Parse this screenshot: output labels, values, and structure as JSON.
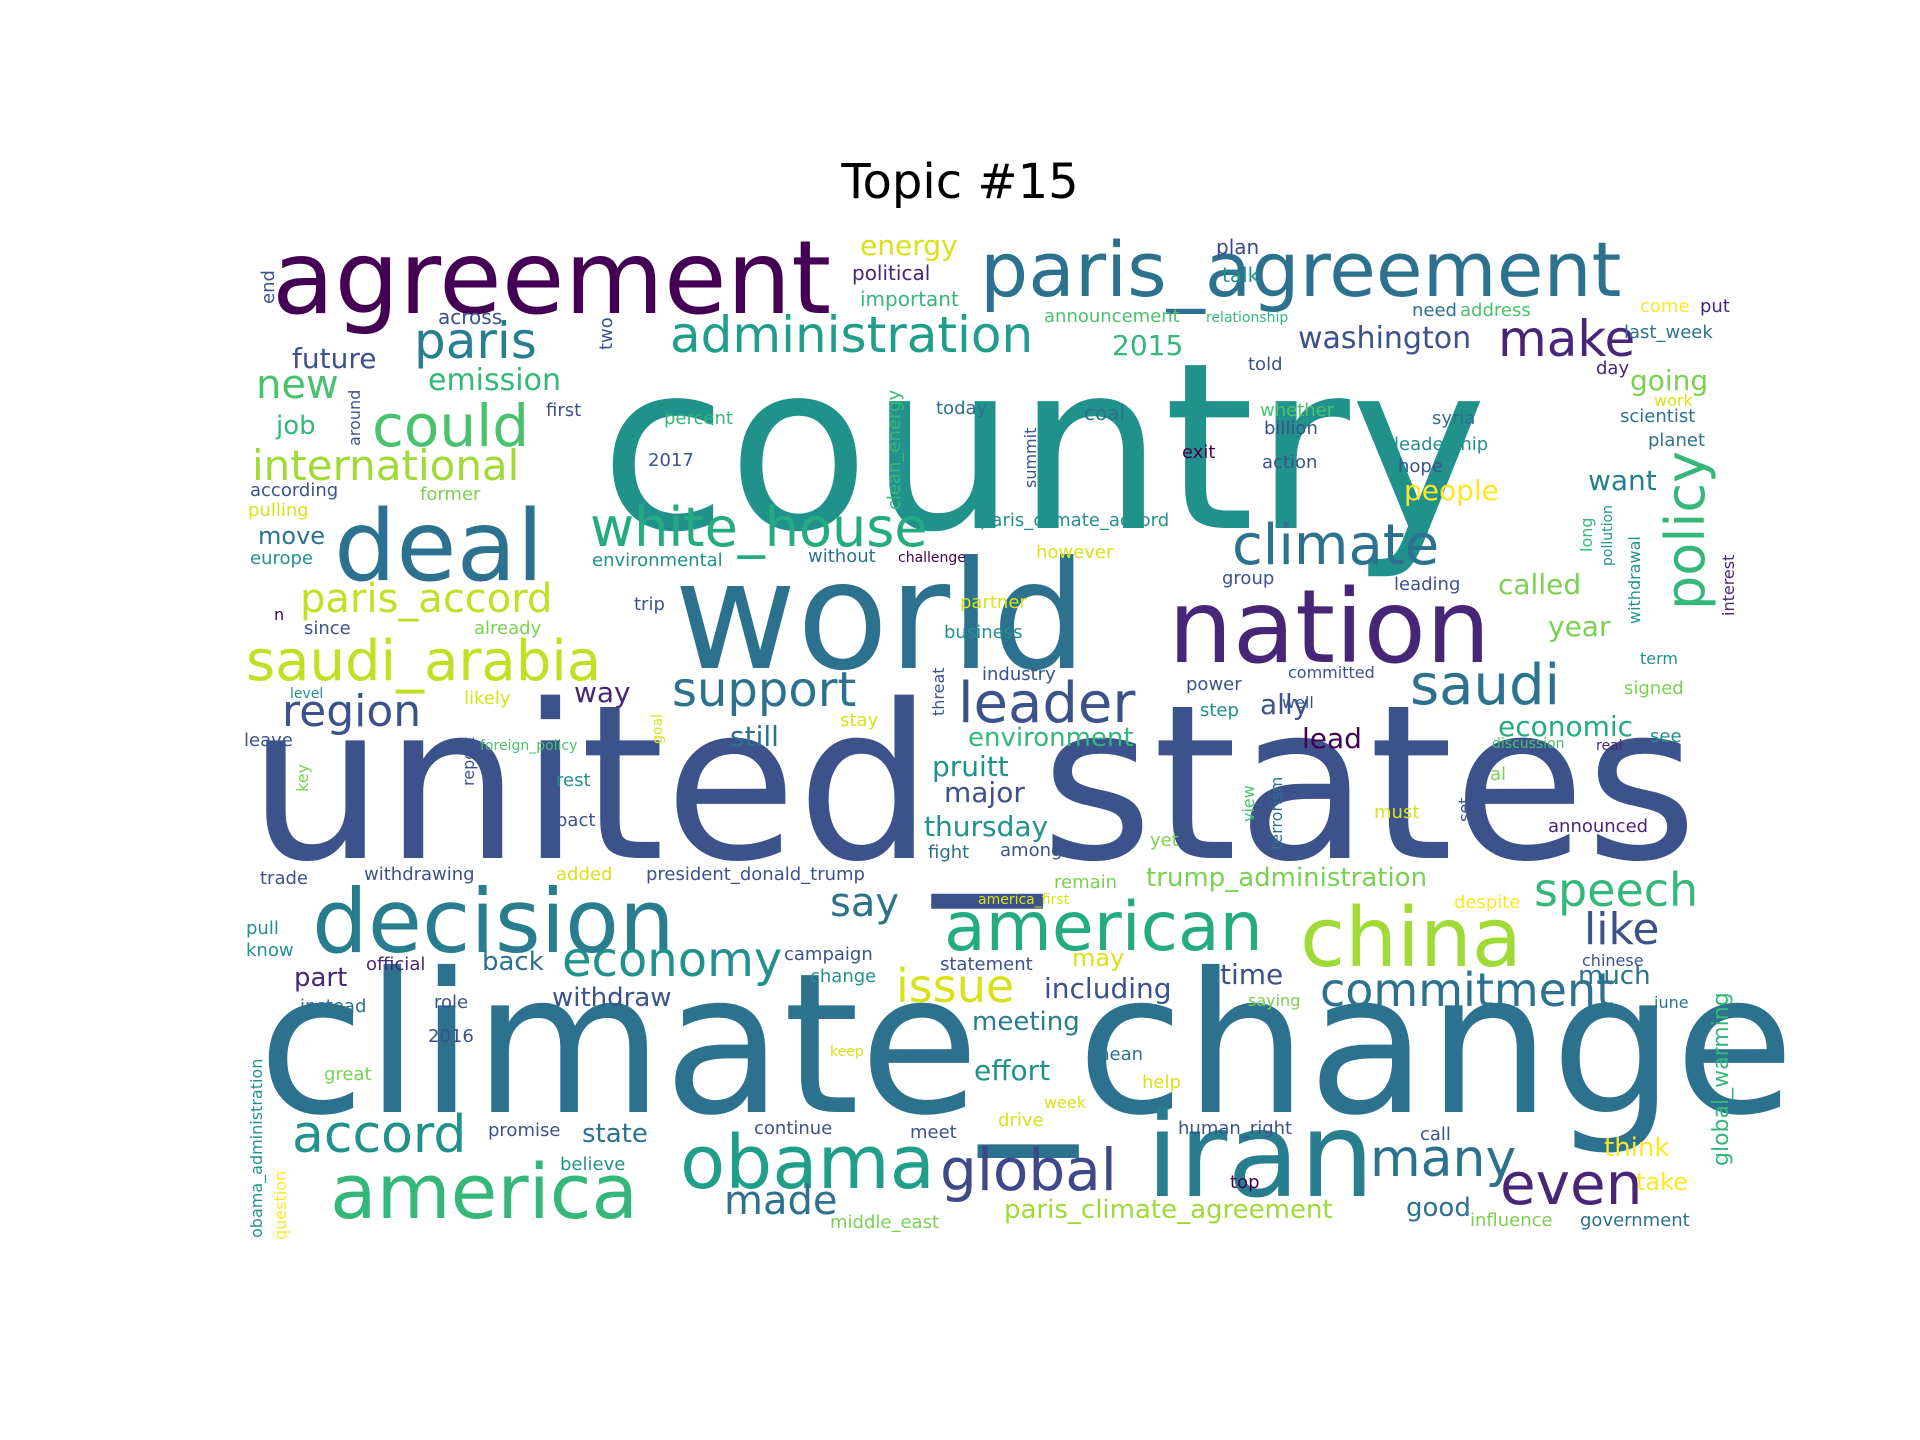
{
  "title": "Topic #15",
  "chart_data": {
    "type": "wordcloud",
    "title": "Topic #15",
    "colormap": "viridis",
    "background": "#ffffff",
    "words": [
      {
        "text": "country",
        "weight": 1.0,
        "color": "#21918c"
      },
      {
        "text": "united_states",
        "weight": 0.98,
        "color": "#3b528b"
      },
      {
        "text": "climate_change",
        "weight": 0.92,
        "color": "#2c728e"
      },
      {
        "text": "world",
        "weight": 0.72,
        "color": "#2c728e"
      },
      {
        "text": "agreement",
        "weight": 0.56,
        "color": "#440154"
      },
      {
        "text": "paris_agreement",
        "weight": 0.44,
        "color": "#2c728e"
      },
      {
        "text": "nation",
        "weight": 0.52,
        "color": "#482677"
      },
      {
        "text": "iran",
        "weight": 0.5,
        "color": "#287d8e"
      },
      {
        "text": "deal",
        "weight": 0.46,
        "color": "#2c728e"
      },
      {
        "text": "decision",
        "weight": 0.44,
        "color": "#287d8e"
      },
      {
        "text": "america",
        "weight": 0.4,
        "color": "#35b779"
      },
      {
        "text": "china",
        "weight": 0.4,
        "color": "#a0da39"
      },
      {
        "text": "obama",
        "weight": 0.38,
        "color": "#1f9e89"
      },
      {
        "text": "american",
        "weight": 0.36,
        "color": "#25ab82"
      },
      {
        "text": "saudi_arabia",
        "weight": 0.32,
        "color": "#c2df23"
      },
      {
        "text": "could",
        "weight": 0.32,
        "color": "#4ac16d"
      },
      {
        "text": "administration",
        "weight": 0.28,
        "color": "#1f9e89"
      },
      {
        "text": "white_house",
        "weight": 0.28,
        "color": "#25ab82"
      },
      {
        "text": "climate",
        "weight": 0.3,
        "color": "#2c728e"
      },
      {
        "text": "leader",
        "weight": 0.3,
        "color": "#3b528b"
      },
      {
        "text": "saudi",
        "weight": 0.28,
        "color": "#2c728e"
      },
      {
        "text": "policy",
        "weight": 0.28,
        "color": "#35b779"
      },
      {
        "text": "global",
        "weight": 0.28,
        "color": "#3e4989"
      },
      {
        "text": "even",
        "weight": 0.28,
        "color": "#482677"
      },
      {
        "text": "many",
        "weight": 0.27,
        "color": "#2c728e"
      },
      {
        "text": "accord",
        "weight": 0.27,
        "color": "#21918c"
      },
      {
        "text": "economy",
        "weight": 0.26,
        "color": "#21918c"
      },
      {
        "text": "paris",
        "weight": 0.26,
        "color": "#287d8e"
      },
      {
        "text": "make",
        "weight": 0.26,
        "color": "#482677"
      },
      {
        "text": "support",
        "weight": 0.26,
        "color": "#2c728e"
      },
      {
        "text": "region",
        "weight": 0.24,
        "color": "#3b528b"
      },
      {
        "text": "international",
        "weight": 0.24,
        "color": "#a0da39"
      },
      {
        "text": "paris_accord",
        "weight": 0.22,
        "color": "#c2df23"
      },
      {
        "text": "speech",
        "weight": 0.24,
        "color": "#35b779"
      },
      {
        "text": "commitment",
        "weight": 0.24,
        "color": "#2c728e"
      },
      {
        "text": "issue",
        "weight": 0.24,
        "color": "#d8e219"
      },
      {
        "text": "like",
        "weight": 0.24,
        "color": "#3b528b"
      },
      {
        "text": "made",
        "weight": 0.22,
        "color": "#2c728e"
      },
      {
        "text": "say",
        "weight": 0.2,
        "color": "#2c728e"
      },
      {
        "text": "new",
        "weight": 0.2,
        "color": "#4ac16d"
      },
      {
        "text": "washington",
        "weight": 0.16,
        "color": "#3b528b"
      },
      {
        "text": "emission",
        "weight": 0.16,
        "color": "#35b779"
      },
      {
        "text": "future",
        "weight": 0.15,
        "color": "#3b528b"
      },
      {
        "text": "energy",
        "weight": 0.15,
        "color": "#d8e219"
      },
      {
        "text": "2015",
        "weight": 0.15,
        "color": "#35b779"
      },
      {
        "text": "going",
        "weight": 0.16,
        "color": "#7ad151"
      },
      {
        "text": "want",
        "weight": 0.16,
        "color": "#287d8e"
      },
      {
        "text": "people",
        "weight": 0.16,
        "color": "#fde725"
      },
      {
        "text": "called",
        "weight": 0.16,
        "color": "#7ad151"
      },
      {
        "text": "year",
        "weight": 0.16,
        "color": "#7ad151"
      },
      {
        "text": "economic",
        "weight": 0.16,
        "color": "#25ab82"
      },
      {
        "text": "lead",
        "weight": 0.16,
        "color": "#440154"
      },
      {
        "text": "ally",
        "weight": 0.14,
        "color": "#3b528b"
      },
      {
        "text": "still",
        "weight": 0.16,
        "color": "#2c728e"
      },
      {
        "text": "way",
        "weight": 0.14,
        "color": "#482677"
      },
      {
        "text": "environment",
        "weight": 0.15,
        "color": "#35b779"
      },
      {
        "text": "pruitt",
        "weight": 0.16,
        "color": "#21918c"
      },
      {
        "text": "major",
        "weight": 0.15,
        "color": "#3b528b"
      },
      {
        "text": "thursday",
        "weight": 0.16,
        "color": "#21918c"
      },
      {
        "text": "trump_administration",
        "weight": 0.15,
        "color": "#7ad151"
      },
      {
        "text": "meeting",
        "weight": 0.15,
        "color": "#287d8e"
      },
      {
        "text": "effort",
        "weight": 0.15,
        "color": "#21918c"
      },
      {
        "text": "including",
        "weight": 0.15,
        "color": "#3b528b"
      },
      {
        "text": "time",
        "weight": 0.15,
        "color": "#3b528b"
      },
      {
        "text": "much",
        "weight": 0.14,
        "color": "#2c728e"
      },
      {
        "text": "withdraw",
        "weight": 0.15,
        "color": "#3b528b"
      },
      {
        "text": "back",
        "weight": 0.14,
        "color": "#2c728e"
      },
      {
        "text": "part",
        "weight": 0.14,
        "color": "#482677"
      },
      {
        "text": "state",
        "weight": 0.14,
        "color": "#2c728e"
      },
      {
        "text": "move",
        "weight": 0.14,
        "color": "#2c728e"
      },
      {
        "text": "job",
        "weight": 0.14,
        "color": "#35b779"
      },
      {
        "text": "may",
        "weight": 0.14,
        "color": "#d8e219"
      },
      {
        "text": "think",
        "weight": 0.14,
        "color": "#fde725"
      },
      {
        "text": "take",
        "weight": 0.13,
        "color": "#fde725"
      },
      {
        "text": "good",
        "weight": 0.14,
        "color": "#2c728e"
      },
      {
        "text": "paris_climate_agreement",
        "weight": 0.15,
        "color": "#a0da39"
      },
      {
        "text": "global_warming",
        "weight": 0.12,
        "color": "#35b779"
      },
      {
        "text": "plan",
        "weight": 0.1,
        "color": "#3e4989"
      },
      {
        "text": "political",
        "weight": 0.1,
        "color": "#482677"
      },
      {
        "text": "talk",
        "weight": 0.1,
        "color": "#21918c"
      },
      {
        "text": "important",
        "weight": 0.1,
        "color": "#35b779"
      },
      {
        "text": "across",
        "weight": 0.1,
        "color": "#3b528b"
      },
      {
        "text": "two",
        "weight": 0.1,
        "color": "#3b528b"
      },
      {
        "text": "end",
        "weight": 0.09,
        "color": "#3b528b"
      },
      {
        "text": "announcement",
        "weight": 0.1,
        "color": "#4ac16d"
      },
      {
        "text": "relationship",
        "weight": 0.08,
        "color": "#35b779"
      },
      {
        "text": "need",
        "weight": 0.1,
        "color": "#2c728e"
      },
      {
        "text": "address",
        "weight": 0.1,
        "color": "#4ac16d"
      },
      {
        "text": "come",
        "weight": 0.1,
        "color": "#fde725"
      },
      {
        "text": "put",
        "weight": 0.1,
        "color": "#482677"
      },
      {
        "text": "last_week",
        "weight": 0.1,
        "color": "#2c728e"
      },
      {
        "text": "told",
        "weight": 0.1,
        "color": "#3b528b"
      },
      {
        "text": "day",
        "weight": 0.1,
        "color": "#482677"
      },
      {
        "text": "work",
        "weight": 0.09,
        "color": "#d8e219"
      },
      {
        "text": "scientist",
        "weight": 0.1,
        "color": "#2c728e"
      },
      {
        "text": "first",
        "weight": 0.1,
        "color": "#3b528b"
      },
      {
        "text": "around",
        "weight": 0.09,
        "color": "#3b528b"
      },
      {
        "text": "percent",
        "weight": 0.1,
        "color": "#35b779"
      },
      {
        "text": "clean_energy",
        "weight": 0.09,
        "color": "#35b779"
      },
      {
        "text": "today",
        "weight": 0.1,
        "color": "#2c728e"
      },
      {
        "text": "coal",
        "weight": 0.1,
        "color": "#2c728e"
      },
      {
        "text": "whether",
        "weight": 0.1,
        "color": "#4ac16d"
      },
      {
        "text": "billion",
        "weight": 0.1,
        "color": "#3b528b"
      },
      {
        "text": "syria",
        "weight": 0.1,
        "color": "#2c728e"
      },
      {
        "text": "leadership",
        "weight": 0.1,
        "color": "#21918c"
      },
      {
        "text": "planet",
        "weight": 0.1,
        "color": "#2c728e"
      },
      {
        "text": "2017",
        "weight": 0.1,
        "color": "#3b528b"
      },
      {
        "text": "summit",
        "weight": 0.09,
        "color": "#3b528b"
      },
      {
        "text": "exit",
        "weight": 0.1,
        "color": "#440154"
      },
      {
        "text": "action",
        "weight": 0.1,
        "color": "#3b528b"
      },
      {
        "text": "hope",
        "weight": 0.1,
        "color": "#3b528b"
      },
      {
        "text": "according",
        "weight": 0.1,
        "color": "#3b528b"
      },
      {
        "text": "former",
        "weight": 0.09,
        "color": "#7ad151"
      },
      {
        "text": "pulling",
        "weight": 0.1,
        "color": "#d8e219"
      },
      {
        "text": "europe",
        "weight": 0.09,
        "color": "#21918c"
      },
      {
        "text": "paris_climate_accord",
        "weight": 0.1,
        "color": "#21918c"
      },
      {
        "text": "long",
        "weight": 0.09,
        "color": "#35b779"
      },
      {
        "text": "pollution",
        "weight": 0.08,
        "color": "#21918c"
      },
      {
        "text": "withdrawal",
        "weight": 0.09,
        "color": "#21918c"
      },
      {
        "text": "interest",
        "weight": 0.09,
        "color": "#482677"
      },
      {
        "text": "environmental",
        "weight": 0.1,
        "color": "#21918c"
      },
      {
        "text": "without",
        "weight": 0.1,
        "color": "#2c728e"
      },
      {
        "text": "challenge",
        "weight": 0.08,
        "color": "#440154"
      },
      {
        "text": "however",
        "weight": 0.1,
        "color": "#d8e219"
      },
      {
        "text": "group",
        "weight": 0.1,
        "color": "#3b528b"
      },
      {
        "text": "leading",
        "weight": 0.1,
        "color": "#3b528b"
      },
      {
        "text": "n",
        "weight": 0.09,
        "color": "#440154"
      },
      {
        "text": "trip",
        "weight": 0.1,
        "color": "#3b528b"
      },
      {
        "text": "partner",
        "weight": 0.1,
        "color": "#d8e219"
      },
      {
        "text": "since",
        "weight": 0.1,
        "color": "#3b528b"
      },
      {
        "text": "already",
        "weight": 0.1,
        "color": "#7ad151"
      },
      {
        "text": "business",
        "weight": 0.1,
        "color": "#21918c"
      },
      {
        "text": "threat",
        "weight": 0.09,
        "color": "#3b528b"
      },
      {
        "text": "term",
        "weight": 0.09,
        "color": "#21918c"
      },
      {
        "text": "industry",
        "weight": 0.09,
        "color": "#3b528b"
      },
      {
        "text": "committed",
        "weight": 0.09,
        "color": "#3b528b"
      },
      {
        "text": "signed",
        "weight": 0.09,
        "color": "#7ad151"
      },
      {
        "text": "level",
        "weight": 0.07,
        "color": "#21918c"
      },
      {
        "text": "likely",
        "weight": 0.1,
        "color": "#d8e219"
      },
      {
        "text": "power",
        "weight": 0.09,
        "color": "#3b528b"
      },
      {
        "text": "step",
        "weight": 0.09,
        "color": "#21918c"
      },
      {
        "text": "well",
        "weight": 0.09,
        "color": "#3b528b"
      },
      {
        "text": "stay",
        "weight": 0.09,
        "color": "#d8e219"
      },
      {
        "text": "leave",
        "weight": 0.09,
        "color": "#3b528b"
      },
      {
        "text": "report",
        "weight": 0.09,
        "color": "#3b528b"
      },
      {
        "text": "goal",
        "weight": 0.08,
        "color": "#d8e219"
      },
      {
        "text": "foreign_policy",
        "weight": 0.08,
        "color": "#4ac16d"
      },
      {
        "text": "terrorism",
        "weight": 0.09,
        "color": "#2c728e"
      },
      {
        "text": "discussion",
        "weight": 0.08,
        "color": "#4ac16d"
      },
      {
        "text": "real",
        "weight": 0.07,
        "color": "#482677"
      },
      {
        "text": "see",
        "weight": 0.09,
        "color": "#21918c"
      },
      {
        "text": "key",
        "weight": 0.08,
        "color": "#7ad151"
      },
      {
        "text": "rest",
        "weight": 0.09,
        "color": "#21918c"
      },
      {
        "text": "view",
        "weight": 0.09,
        "color": "#4ac16d"
      },
      {
        "text": "set",
        "weight": 0.09,
        "color": "#3b528b"
      },
      {
        "text": "al",
        "weight": 0.09,
        "color": "#7ad151"
      },
      {
        "text": "must",
        "weight": 0.09,
        "color": "#d8e219"
      },
      {
        "text": "pact",
        "weight": 0.1,
        "color": "#3b528b"
      },
      {
        "text": "yet",
        "weight": 0.09,
        "color": "#7ad151"
      },
      {
        "text": "announced",
        "weight": 0.09,
        "color": "#482677"
      },
      {
        "text": "fight",
        "weight": 0.09,
        "color": "#2c728e"
      },
      {
        "text": "among",
        "weight": 0.09,
        "color": "#3b528b"
      },
      {
        "text": "withdrawing",
        "weight": 0.09,
        "color": "#3b528b"
      },
      {
        "text": "trade",
        "weight": 0.09,
        "color": "#3b528b"
      },
      {
        "text": "added",
        "weight": 0.09,
        "color": "#d8e219"
      },
      {
        "text": "president_donald_trump",
        "weight": 0.09,
        "color": "#3b528b"
      },
      {
        "text": "remain",
        "weight": 0.09,
        "color": "#7ad151"
      },
      {
        "text": "america_first",
        "weight": 0.07,
        "color": "#d8e219"
      },
      {
        "text": "despite",
        "weight": 0.09,
        "color": "#fde725"
      },
      {
        "text": "pull",
        "weight": 0.09,
        "color": "#21918c"
      },
      {
        "text": "know",
        "weight": 0.09,
        "color": "#21918c"
      },
      {
        "text": "official",
        "weight": 0.09,
        "color": "#482677"
      },
      {
        "text": "campaign",
        "weight": 0.09,
        "color": "#3b528b"
      },
      {
        "text": "change",
        "weight": 0.09,
        "color": "#21918c"
      },
      {
        "text": "statement",
        "weight": 0.09,
        "color": "#3b528b"
      },
      {
        "text": "chinese",
        "weight": 0.09,
        "color": "#3b528b"
      },
      {
        "text": "instead",
        "weight": 0.09,
        "color": "#2c728e"
      },
      {
        "text": "role",
        "weight": 0.09,
        "color": "#3b528b"
      },
      {
        "text": "saying",
        "weight": 0.09,
        "color": "#7ad151"
      },
      {
        "text": "june",
        "weight": 0.09,
        "color": "#2c728e"
      },
      {
        "text": "2016",
        "weight": 0.09,
        "color": "#3b528b"
      },
      {
        "text": "keep",
        "weight": 0.07,
        "color": "#d8e219"
      },
      {
        "text": "mean",
        "weight": 0.09,
        "color": "#2c728e"
      },
      {
        "text": "obama_administration",
        "weight": 0.08,
        "color": "#21918c"
      },
      {
        "text": "great",
        "weight": 0.09,
        "color": "#7ad151"
      },
      {
        "text": "help",
        "weight": 0.09,
        "color": "#d8e219"
      },
      {
        "text": "week",
        "weight": 0.08,
        "color": "#d8e219"
      },
      {
        "text": "drive",
        "weight": 0.09,
        "color": "#d8e219"
      },
      {
        "text": "human_right",
        "weight": 0.09,
        "color": "#3b528b"
      },
      {
        "text": "question",
        "weight": 0.08,
        "color": "#fde725"
      },
      {
        "text": "promise",
        "weight": 0.09,
        "color": "#3b528b"
      },
      {
        "text": "continue",
        "weight": 0.09,
        "color": "#3b528b"
      },
      {
        "text": "meet",
        "weight": 0.09,
        "color": "#3b528b"
      },
      {
        "text": "call",
        "weight": 0.09,
        "color": "#3b528b"
      },
      {
        "text": "believe",
        "weight": 0.09,
        "color": "#21918c"
      },
      {
        "text": "top",
        "weight": 0.09,
        "color": "#440154"
      },
      {
        "text": "middle_east",
        "weight": 0.09,
        "color": "#7ad151"
      },
      {
        "text": "influence",
        "weight": 0.09,
        "color": "#7ad151"
      },
      {
        "text": "government",
        "weight": 0.09,
        "color": "#2c728e"
      }
    ]
  }
}
